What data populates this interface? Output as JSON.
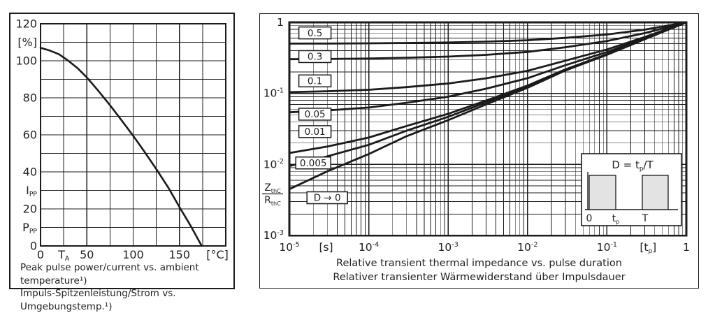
{
  "page": {
    "background": "#ffffff",
    "line_color": "#1b1b1b",
    "text_color": "#222226",
    "inset_fill": "#e3e3e3",
    "label_box_fill": "#ffffff"
  },
  "chart_data": [
    {
      "id": "peak-pulse-derating",
      "type": "line",
      "title_en": "Peak pulse power/current vs. ambient temperature¹)",
      "title_de": "Impuls-Spitzenleistung/Strom vs. Umgebungstemp.¹)",
      "xlabel": "[°C]",
      "ylabel": "[%]",
      "xlim": [
        0,
        200
      ],
      "ylim": [
        0,
        120
      ],
      "x_gridstep": 25,
      "y_gridstep": 10,
      "grid": true,
      "xticks": [
        {
          "v": 0,
          "t": "0"
        },
        {
          "v": 25,
          "t": "T",
          "sub": "A"
        },
        {
          "v": 50,
          "t": "50"
        },
        {
          "v": 100,
          "t": "100"
        },
        {
          "v": 150,
          "t": "150"
        },
        {
          "v": 191,
          "t": "[°C]"
        }
      ],
      "yticks": [
        {
          "v": 120,
          "t": "120"
        },
        {
          "v": 110,
          "t": "[%]"
        },
        {
          "v": 100,
          "t": "100"
        },
        {
          "v": 80,
          "t": "80"
        },
        {
          "v": 60,
          "t": "60"
        },
        {
          "v": 40,
          "t": "40"
        },
        {
          "v": 30,
          "t": "I",
          "sub": "PP"
        },
        {
          "v": 20,
          "t": "20"
        },
        {
          "v": 10,
          "t": "P",
          "sub": "PP"
        },
        {
          "v": 0,
          "t": "0"
        }
      ],
      "series": [
        {
          "name": "relative-peak-pulse-power-current",
          "points": [
            [
              0,
              107
            ],
            [
              10,
              105.5
            ],
            [
              20,
              103.5
            ],
            [
              30,
              100
            ],
            [
              40,
              96
            ],
            [
              50,
              91
            ],
            [
              62,
              84
            ],
            [
              75,
              76
            ],
            [
              88,
              67.5
            ],
            [
              100,
              59.5
            ],
            [
              112,
              51
            ],
            [
              125,
              41.5
            ],
            [
              138,
              31.5
            ],
            [
              150,
              21
            ],
            [
              162,
              11
            ],
            [
              174,
              0
            ]
          ]
        }
      ]
    },
    {
      "id": "transient-thermal-impedance",
      "type": "line",
      "title_en": "Relative transient thermal impedance vs. pulse duration",
      "title_de": "Relativer transienter Wärmewiderstand über Impulsdauer",
      "x_log": true,
      "y_log": true,
      "xlim": [
        1e-05,
        1
      ],
      "ylim": [
        0.001,
        1
      ],
      "ylabel_fraction": {
        "num": "Z",
        "num_sub": "thC",
        "den": "R",
        "den_sub": "thC"
      },
      "xticks": [
        {
          "v": 1e-05,
          "exp": "-5"
        },
        {
          "v": 0.0001,
          "exp": "-4"
        },
        {
          "v": 0.001,
          "exp": "-3"
        },
        {
          "v": 0.01,
          "exp": "-2"
        },
        {
          "v": 0.1,
          "exp": "-1"
        },
        {
          "v": 1,
          "t": "1"
        }
      ],
      "x_unit_labels": [
        {
          "x": 2.9e-05,
          "t": "[s]"
        },
        {
          "x": 0.33,
          "t": "[t",
          "sub": "p",
          "t2": "]"
        }
      ],
      "yticks": [
        {
          "v": 1,
          "t": "1"
        },
        {
          "v": 0.1,
          "exp": "-1"
        },
        {
          "v": 0.01,
          "exp": "-2"
        },
        {
          "v": 0.001,
          "exp": "-3"
        }
      ],
      "x_values": [
        1e-05,
        3e-05,
        0.0001,
        0.0003,
        0.001,
        0.003,
        0.01,
        0.03,
        0.1,
        0.3,
        1
      ],
      "series": [
        {
          "label": "0.5",
          "D": 0.5,
          "y": [
            0.5023,
            0.504,
            0.507,
            0.5125,
            0.521,
            0.535,
            0.56,
            0.605,
            0.675,
            0.79,
            1
          ]
        },
        {
          "label": "0.3",
          "D": 0.3,
          "y": [
            0.3032,
            0.3056,
            0.3098,
            0.3175,
            0.3294,
            0.349,
            0.384,
            0.447,
            0.545,
            0.706,
            1
          ]
        },
        {
          "label": "0.1",
          "D": 0.1,
          "y": [
            0.1041,
            0.1072,
            0.1126,
            0.1225,
            0.1378,
            0.163,
            0.208,
            0.289,
            0.415,
            0.622,
            1
          ]
        },
        {
          "label": "0.05",
          "D": 0.05,
          "y": [
            0.0543,
            0.0576,
            0.0633,
            0.0738,
            0.0899,
            0.1165,
            0.164,
            0.2495,
            0.3825,
            0.601,
            1
          ]
        },
        {
          "label": "0.01",
          "D": 0.01,
          "y": [
            0.0145,
            0.0179,
            0.0239,
            0.0348,
            0.0516,
            0.0793,
            0.1288,
            0.2179,
            0.3565,
            0.5842,
            1
          ]
        },
        {
          "label": "0.005",
          "D": 0.005,
          "y": [
            0.0095,
            0.013,
            0.0189,
            0.0299,
            0.0468,
            0.0747,
            0.1244,
            0.214,
            0.3533,
            0.5821,
            1
          ]
        },
        {
          "label": "D → 0",
          "D": 0,
          "y": [
            0.0045,
            0.008,
            0.014,
            0.025,
            0.042,
            0.07,
            0.12,
            0.21,
            0.35,
            0.58,
            1
          ]
        }
      ],
      "curve_labels": [
        {
          "text": "0.5",
          "x": 2.1e-05,
          "y": 0.71
        },
        {
          "text": "0.3",
          "x": 2.1e-05,
          "y": 0.33
        },
        {
          "text": "0.1",
          "x": 2.1e-05,
          "y": 0.15
        },
        {
          "text": "0.05",
          "x": 2.1e-05,
          "y": 0.051
        },
        {
          "text": "0.01",
          "x": 2.1e-05,
          "y": 0.029
        },
        {
          "text": "0.005",
          "x": 2e-05,
          "y": 0.0105
        },
        {
          "text": "D → 0",
          "x": 3e-05,
          "y": 0.0034
        }
      ],
      "inset": {
        "formula": {
          "t": "D = t",
          "sub": "p",
          "t2": "/T"
        },
        "axis_labels": [
          {
            "t": "0"
          },
          {
            "t": "t",
            "sub": "p"
          },
          {
            "t": "T"
          }
        ]
      }
    }
  ]
}
